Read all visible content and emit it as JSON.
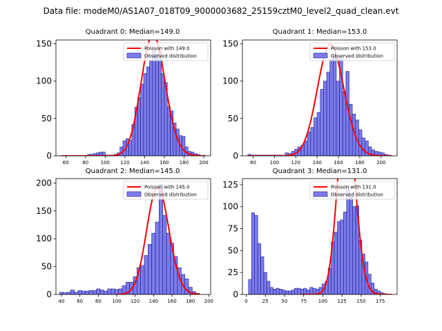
{
  "figure_title": "Data file: modeM0/AS1A07_018T09_9000003682_25159cztM0_level2_quad_clean.evt",
  "colors": {
    "hist_fill": "#7b7bea",
    "hist_edge": "#1a1a8c",
    "poisson_line": "#ff0000",
    "axes": "#000000"
  },
  "chart_data": [
    {
      "type": "bar",
      "title": "Quadrant 0: Median=149.0",
      "median": 149.0,
      "legend": {
        "line": "Poisson with 149.0",
        "bars": "Observed distribution",
        "placement": "top-right"
      },
      "xlim": [
        50,
        207
      ],
      "ylim": [
        0,
        155
      ],
      "xticks": [
        60,
        80,
        100,
        120,
        140,
        160,
        180,
        200
      ],
      "yticks": [
        0,
        50,
        100,
        150
      ],
      "bin_width": 3,
      "bins": [
        [
          82,
          2
        ],
        [
          85,
          2
        ],
        [
          88,
          3
        ],
        [
          91,
          4
        ],
        [
          94,
          5
        ],
        [
          97,
          5
        ],
        [
          100,
          1
        ],
        [
          103,
          1
        ],
        [
          106,
          1
        ],
        [
          109,
          2
        ],
        [
          112,
          4
        ],
        [
          115,
          12
        ],
        [
          118,
          20
        ],
        [
          121,
          23
        ],
        [
          124,
          21
        ],
        [
          127,
          42
        ],
        [
          130,
          65
        ],
        [
          133,
          78
        ],
        [
          136,
          96
        ],
        [
          139,
          110
        ],
        [
          142,
          119
        ],
        [
          145,
          128
        ],
        [
          148,
          140
        ],
        [
          151,
          136
        ],
        [
          154,
          140
        ],
        [
          157,
          110
        ],
        [
          160,
          98
        ],
        [
          163,
          66
        ],
        [
          166,
          60
        ],
        [
          169,
          44
        ],
        [
          172,
          36
        ],
        [
          175,
          27
        ],
        [
          178,
          26
        ],
        [
          181,
          12
        ],
        [
          184,
          6
        ],
        [
          187,
          5
        ],
        [
          190,
          3
        ],
        [
          193,
          2
        ]
      ],
      "poisson_x_range": [
        55,
        202
      ]
    },
    {
      "type": "bar",
      "title": "Quadrant 1: Median=153.0",
      "median": 153.0,
      "legend": {
        "line": "Poisson with 153.0",
        "bars": "Observed distribution",
        "placement": "top-right"
      },
      "xlim": [
        70,
        215
      ],
      "ylim": [
        0,
        155
      ],
      "xticks": [
        80,
        100,
        120,
        140,
        160,
        180,
        200
      ],
      "yticks": [
        0,
        50,
        100,
        150
      ],
      "bin_width": 3,
      "bins": [
        [
          75,
          2
        ],
        [
          78,
          1
        ],
        [
          81,
          1
        ],
        [
          84,
          1
        ],
        [
          87,
          1
        ],
        [
          90,
          1
        ],
        [
          93,
          1
        ],
        [
          96,
          1
        ],
        [
          99,
          1
        ],
        [
          102,
          1
        ],
        [
          105,
          1
        ],
        [
          110,
          4
        ],
        [
          113,
          3
        ],
        [
          116,
          6
        ],
        [
          119,
          9
        ],
        [
          122,
          12
        ],
        [
          125,
          14
        ],
        [
          128,
          20
        ],
        [
          131,
          32
        ],
        [
          134,
          38
        ],
        [
          137,
          51
        ],
        [
          140,
          58
        ],
        [
          143,
          89
        ],
        [
          146,
          100
        ],
        [
          149,
          112
        ],
        [
          152,
          129
        ],
        [
          155,
          133
        ],
        [
          158,
          100
        ],
        [
          161,
          130
        ],
        [
          164,
          86
        ],
        [
          167,
          113
        ],
        [
          170,
          69
        ],
        [
          173,
          56
        ],
        [
          176,
          48
        ],
        [
          179,
          35
        ],
        [
          182,
          24
        ],
        [
          185,
          20
        ],
        [
          188,
          12
        ],
        [
          191,
          8
        ],
        [
          194,
          6
        ],
        [
          197,
          5
        ],
        [
          200,
          4
        ],
        [
          203,
          2
        ],
        [
          206,
          1
        ]
      ],
      "poisson_x_range": [
        75,
        210
      ]
    },
    {
      "type": "bar",
      "title": "Quadrant 2: Median=145.0",
      "median": 145.0,
      "legend": {
        "line": "Poisson with 145.0",
        "bars": "Observed distribution",
        "placement": "top-right"
      },
      "xlim": [
        34,
        202
      ],
      "ylim": [
        0,
        208
      ],
      "xticks": [
        40,
        60,
        80,
        100,
        120,
        140,
        160,
        180,
        200
      ],
      "yticks": [
        0,
        50,
        100,
        150,
        200
      ],
      "bin_width": 4,
      "bins": [
        [
          38,
          4
        ],
        [
          42,
          3
        ],
        [
          46,
          4
        ],
        [
          50,
          8
        ],
        [
          54,
          4
        ],
        [
          58,
          7
        ],
        [
          62,
          6
        ],
        [
          66,
          6
        ],
        [
          70,
          7
        ],
        [
          74,
          7
        ],
        [
          78,
          10
        ],
        [
          82,
          8
        ],
        [
          86,
          6
        ],
        [
          90,
          10
        ],
        [
          94,
          10
        ],
        [
          98,
          9
        ],
        [
          102,
          10
        ],
        [
          106,
          16
        ],
        [
          110,
          22
        ],
        [
          114,
          22
        ],
        [
          118,
          32
        ],
        [
          122,
          48
        ],
        [
          126,
          52
        ],
        [
          130,
          70
        ],
        [
          134,
          90
        ],
        [
          138,
          110
        ],
        [
          142,
          130
        ],
        [
          146,
          198
        ],
        [
          150,
          142
        ],
        [
          154,
          110
        ],
        [
          158,
          92
        ],
        [
          162,
          68
        ],
        [
          166,
          48
        ],
        [
          170,
          36
        ],
        [
          174,
          28
        ],
        [
          178,
          13
        ],
        [
          182,
          5
        ],
        [
          186,
          2
        ]
      ],
      "poisson_x_range": [
        100,
        190
      ]
    },
    {
      "type": "bar",
      "title": "Quadrant 3: Median=131.0",
      "median": 131.0,
      "legend": {
        "line": "Poisson with 131.0",
        "bars": "Observed distribution",
        "placement": "top-right"
      },
      "xlim": [
        -5,
        197
      ],
      "ylim": [
        0,
        132
      ],
      "xticks": [
        0,
        25,
        50,
        75,
        100,
        125,
        150,
        175
      ],
      "yticks": [
        0,
        25,
        50,
        75,
        100,
        125
      ],
      "bin_width": 4,
      "bins": [
        [
          3,
          17
        ],
        [
          7,
          93
        ],
        [
          11,
          90
        ],
        [
          15,
          58
        ],
        [
          19,
          43
        ],
        [
          23,
          25
        ],
        [
          27,
          15
        ],
        [
          31,
          8
        ],
        [
          35,
          6
        ],
        [
          39,
          7
        ],
        [
          43,
          6
        ],
        [
          47,
          5
        ],
        [
          51,
          4
        ],
        [
          55,
          4
        ],
        [
          59,
          5
        ],
        [
          63,
          7
        ],
        [
          67,
          7
        ],
        [
          71,
          6
        ],
        [
          75,
          7
        ],
        [
          79,
          5
        ],
        [
          83,
          8
        ],
        [
          87,
          7
        ],
        [
          91,
          6
        ],
        [
          95,
          8
        ],
        [
          99,
          12
        ],
        [
          103,
          15
        ],
        [
          107,
          30
        ],
        [
          111,
          60
        ],
        [
          115,
          71
        ],
        [
          119,
          83
        ],
        [
          123,
          85
        ],
        [
          127,
          94
        ],
        [
          131,
          124
        ],
        [
          135,
          112
        ],
        [
          139,
          100
        ],
        [
          143,
          101
        ],
        [
          147,
          62
        ],
        [
          151,
          46
        ],
        [
          155,
          37
        ],
        [
          159,
          23
        ],
        [
          163,
          13
        ],
        [
          167,
          6
        ],
        [
          171,
          4
        ],
        [
          175,
          2
        ],
        [
          179,
          1
        ]
      ],
      "poisson_x_range": [
        70,
        190
      ]
    }
  ]
}
